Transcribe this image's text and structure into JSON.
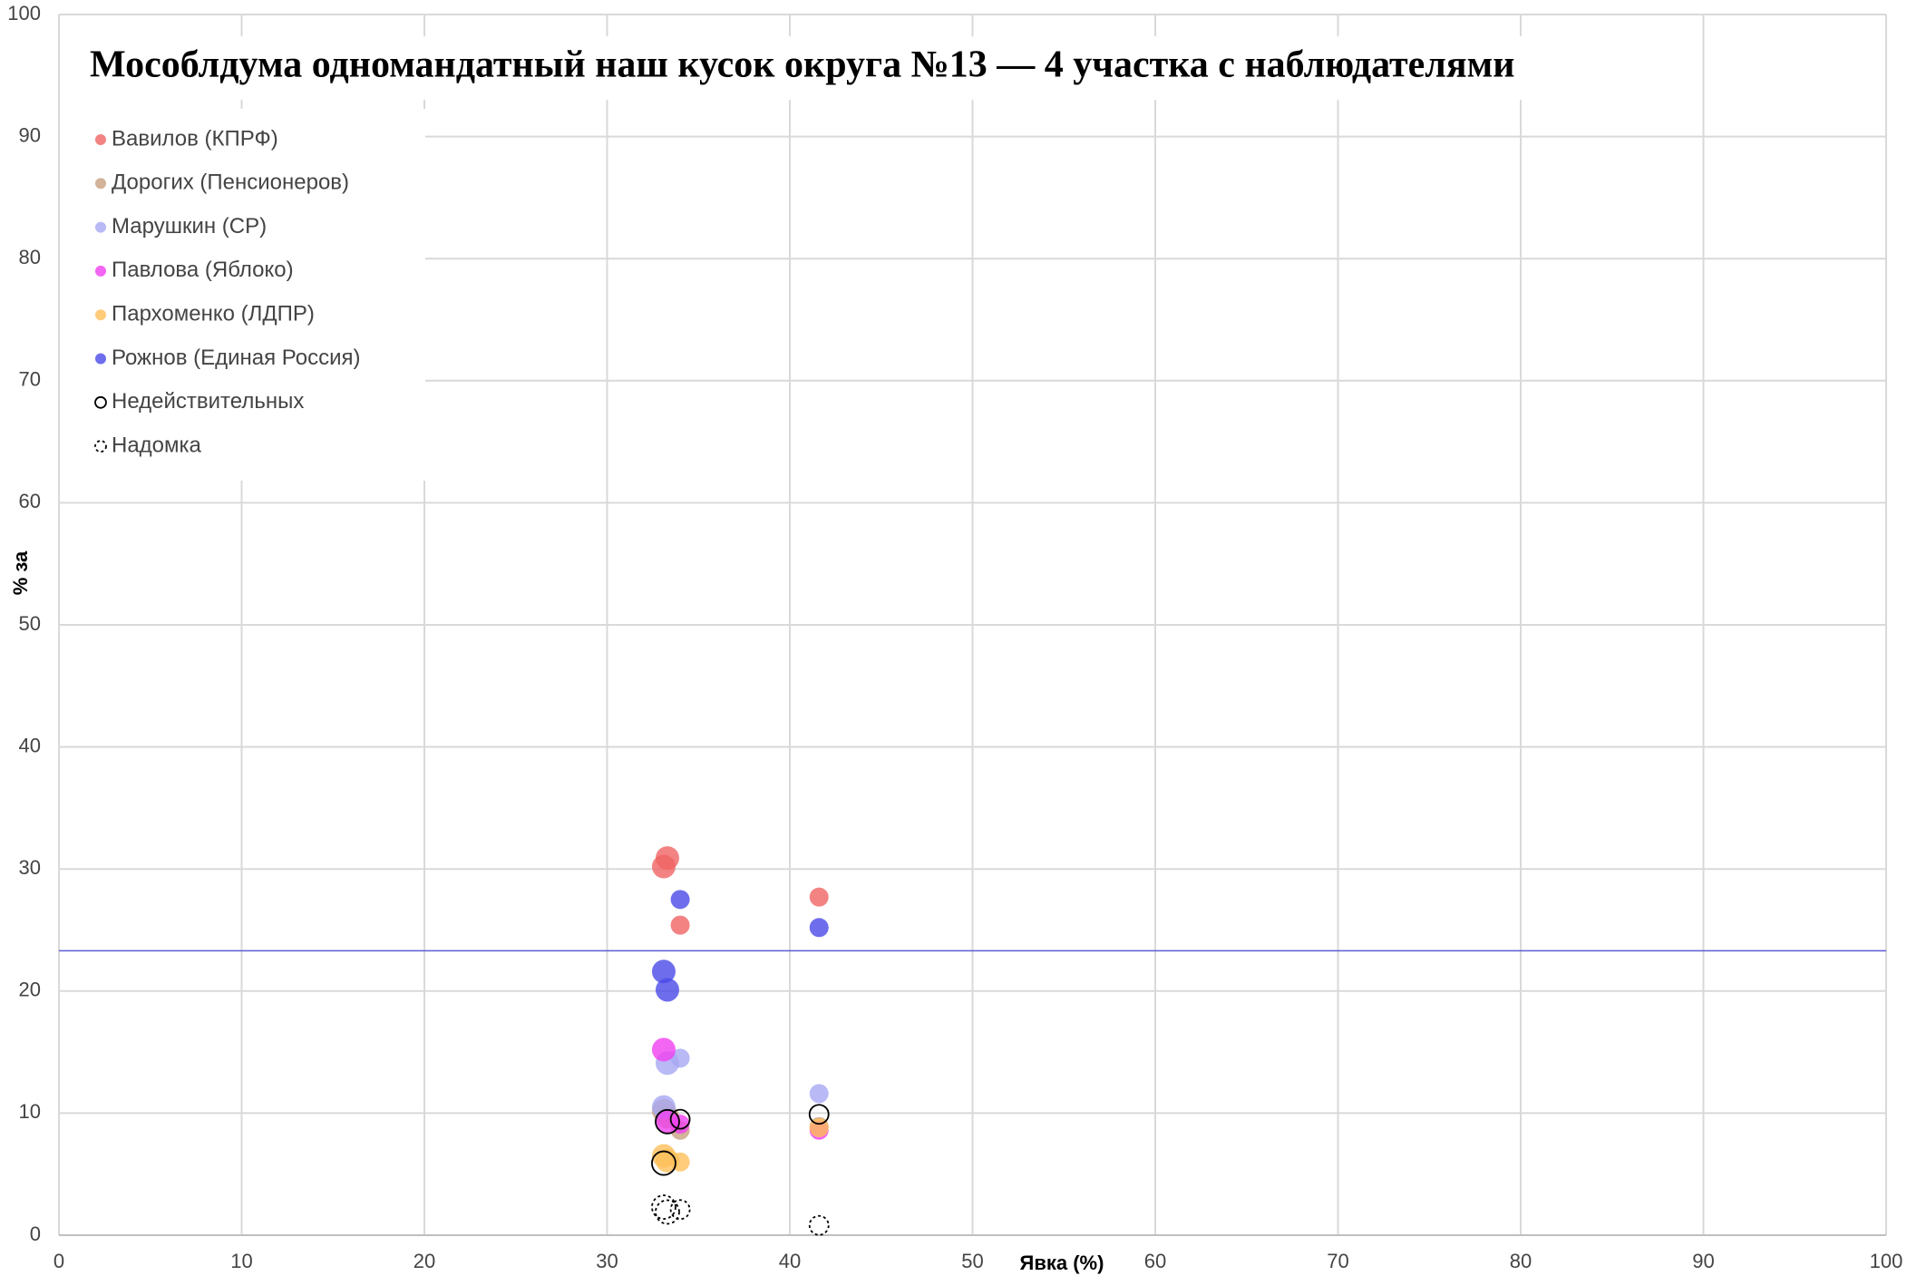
{
  "chart_data": {
    "type": "scatter",
    "title": "Мособлдума одномандатный наш кусок округа №13 — 4 участка с наблюдателями",
    "xlabel": "Явка (%)",
    "ylabel": "% за",
    "xlim": [
      0,
      100
    ],
    "ylim": [
      0,
      100
    ],
    "xticks": [
      0,
      10,
      20,
      30,
      40,
      50,
      60,
      70,
      80,
      90,
      100
    ],
    "yticks": [
      0,
      10,
      20,
      30,
      40,
      50,
      60,
      70,
      80,
      90,
      100
    ],
    "grid": true,
    "legend": "upper left",
    "hline": {
      "value": 23.3,
      "color": "#5b5bd6"
    },
    "series": [
      {
        "name": "Вавилов (КПРФ)",
        "color": "#f06464",
        "style": "filled",
        "x": [
          33.1,
          33.3,
          34.0,
          41.6
        ],
        "values": [
          30.2,
          30.9,
          25.4,
          27.7
        ]
      },
      {
        "name": "Дорогих (Пенсионеров)",
        "color": "#c8a080",
        "style": "filled",
        "x": [
          33.1,
          33.3,
          34.0,
          41.6
        ],
        "values": [
          10.2,
          9.7,
          8.6,
          8.9
        ]
      },
      {
        "name": "Марушкин (СР)",
        "color": "#a8a8f4",
        "style": "filled",
        "x": [
          33.1,
          33.3,
          34.0,
          41.6
        ],
        "values": [
          10.5,
          14.1,
          14.5,
          11.6
        ]
      },
      {
        "name": "Павлова (Яблоко)",
        "color": "#f040f0",
        "style": "filled",
        "x": [
          33.1,
          33.3,
          34.0,
          41.6
        ],
        "values": [
          15.2,
          9.3,
          9.1,
          8.6
        ]
      },
      {
        "name": "Пархоменко (ЛДПР)",
        "color": "#ffbf5a",
        "style": "filled",
        "x": [
          33.1,
          33.3,
          34.0,
          41.6
        ],
        "values": [
          6.5,
          6.1,
          6.0,
          8.8
        ]
      },
      {
        "name": "Рожнов (Единая Россия)",
        "color": "#4a4ae8",
        "style": "filled",
        "x": [
          33.1,
          33.3,
          34.0,
          41.6
        ],
        "values": [
          21.6,
          20.1,
          27.5,
          25.2
        ]
      },
      {
        "name": "Недействительных",
        "color": "#000000",
        "style": "hollow",
        "x": [
          33.1,
          33.3,
          34.0,
          41.6
        ],
        "values": [
          5.9,
          9.3,
          9.5,
          9.9
        ]
      },
      {
        "name": "Надомка",
        "color": "#000000",
        "style": "dashed",
        "x": [
          33.1,
          33.3,
          34.0,
          41.6
        ],
        "values": [
          2.3,
          1.9,
          2.1,
          0.8
        ]
      }
    ]
  }
}
